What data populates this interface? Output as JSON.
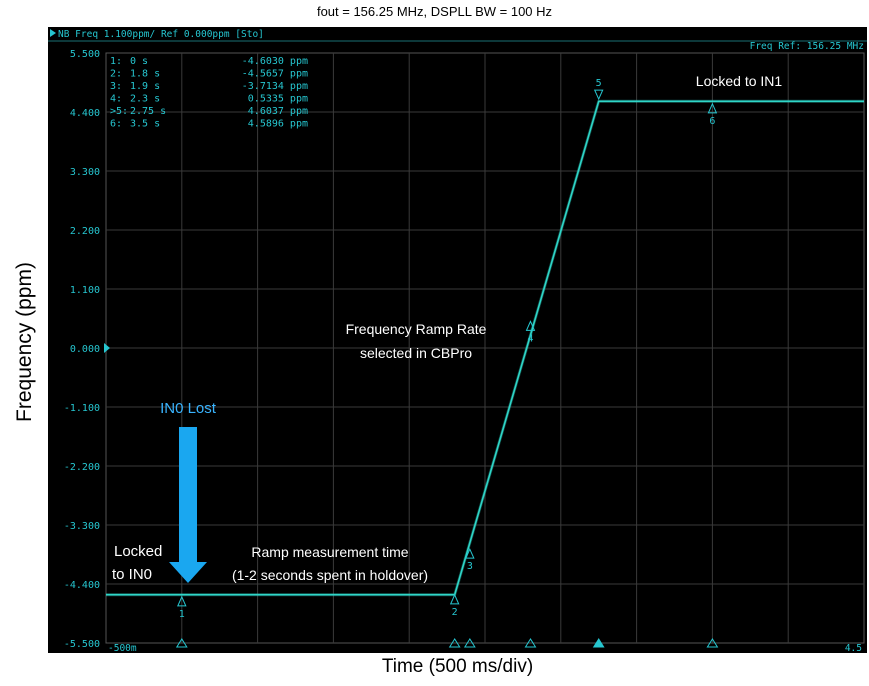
{
  "chart_data": {
    "type": "line",
    "title": "fout = 156.25 MHz, DSPLL BW = 100 Hz",
    "xlabel": "Time (500 ms/div)",
    "ylabel": "Frequency (ppm)",
    "header_left": "NB Freq 1.100ppm/ Ref 0.000ppm [Sto]",
    "header_right": "Freq Ref: 156.25 MHz",
    "x_start_label": "-500m",
    "x_end_label": "4.5",
    "xlim": [
      -0.5,
      4.5
    ],
    "ylim": [
      -5.5,
      5.5
    ],
    "y_ticks": [
      {
        "value": 5.5,
        "label": "5.500"
      },
      {
        "value": 4.4,
        "label": "4.400"
      },
      {
        "value": 3.3,
        "label": "3.300"
      },
      {
        "value": 2.2,
        "label": "2.200"
      },
      {
        "value": 1.1,
        "label": "1.100"
      },
      {
        "value": 0.0,
        "label": "0.000"
      },
      {
        "value": -1.1,
        "label": "-1.100"
      },
      {
        "value": -2.2,
        "label": "-2.200"
      },
      {
        "value": -3.3,
        "label": "-3.300"
      },
      {
        "value": -4.4,
        "label": "-4.400"
      },
      {
        "value": -5.5,
        "label": "-5.500"
      }
    ],
    "series": [
      {
        "values": [
          {
            "x": -0.5,
            "y": -4.6
          },
          {
            "x": 1.8,
            "y": -4.6
          },
          {
            "x": 2.75,
            "y": 4.6
          },
          {
            "x": 4.5,
            "y": 4.6
          }
        ]
      }
    ],
    "markers": [
      {
        "id": "1",
        "x_label": "0 s",
        "x": 0.0,
        "y": -4.603,
        "value": "-4.6030 ppm",
        "row_prefix": "1:",
        "dir": "up"
      },
      {
        "id": "2",
        "x_label": "1.8 s",
        "x": 1.8,
        "y": -4.5657,
        "value": "-4.5657 ppm",
        "row_prefix": "2:",
        "dir": "up"
      },
      {
        "id": "3",
        "x_label": "1.9 s",
        "x": 1.9,
        "y": -3.7134,
        "value": "-3.7134 ppm",
        "row_prefix": "3:",
        "dir": "up"
      },
      {
        "id": "4",
        "x_label": "2.3 s",
        "x": 2.3,
        "y": 0.5335,
        "value": "0.5335 ppm",
        "row_prefix": "4:",
        "dir": "up"
      },
      {
        "id": "5",
        "x_label": "2.75 s",
        "x": 2.75,
        "y": 4.6037,
        "value": "4.6037 ppm",
        "row_prefix": ">5:",
        "dir": "down"
      },
      {
        "id": "6",
        "x_label": "3.5 s",
        "x": 3.5,
        "y": 4.5896,
        "value": "4.5896 ppm",
        "row_prefix": "6:",
        "dir": "up"
      }
    ],
    "annotations": {
      "locked_in1": "Locked to IN1",
      "ramp_rate": [
        "Frequency Ramp Rate",
        "selected in CBPro"
      ],
      "in0_lost": "IN0 Lost",
      "locked_in0": [
        "Locked",
        "to IN0"
      ],
      "ramp_time": [
        "Ramp measurement time",
        "(1-2 seconds spent in holdover)"
      ]
    },
    "colors": {
      "background": "#000000",
      "trace": "#2fd6c8",
      "grid": "#3a3a3a",
      "text": "#26c6d0",
      "arrow": "#1aa7f0",
      "annotation_text": "#ffffff",
      "in0_lost_text": "#39b4ff"
    },
    "grid": true
  }
}
